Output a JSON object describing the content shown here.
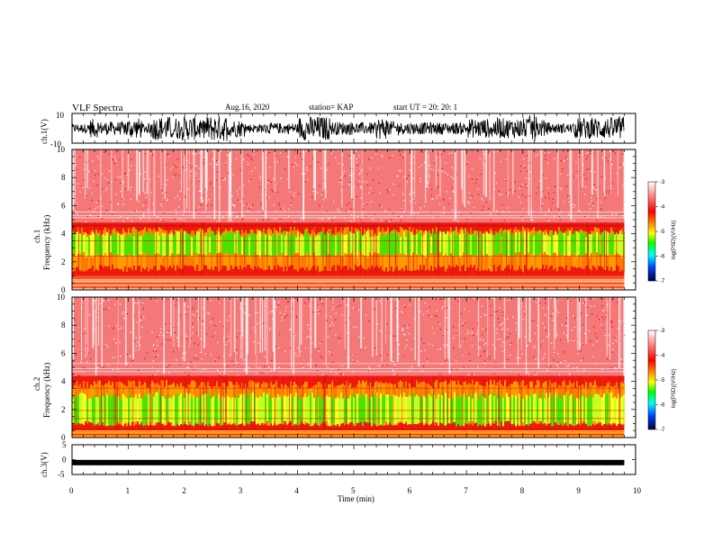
{
  "header": {
    "title": "VLF Spectra",
    "date": "Aug.16, 2020",
    "station": "station= KAP",
    "start": "start  UT =   20: 20: 1"
  },
  "chart_data": [
    {
      "type": "line",
      "title": "",
      "ylabel": "ch.1(V)",
      "ylim": [
        -10,
        10
      ],
      "yticks": [
        "10",
        "-10"
      ],
      "xlim": [
        0,
        10
      ],
      "description_values": {
        "x_end": 9.8,
        "typical_range": [
          -8,
          8
        ]
      }
    },
    {
      "type": "heatmap",
      "ylabel": "ch.1\nFrequency (kHz)",
      "ylabel_line1": "ch.1",
      "ylabel_line2": "Frequency (kHz)",
      "ylim": [
        0,
        10
      ],
      "yticks": [
        "0",
        "2",
        "4",
        "6",
        "8",
        "10"
      ],
      "xlim": [
        0,
        10
      ],
      "x_end": 9.8,
      "band_low_edge": 1.0,
      "band_high_edge": 4.8,
      "green_band": [
        2.5,
        4.0
      ],
      "colorbar": {
        "label": "log(PSD)(V²/Hz)",
        "range": [
          -7,
          -3
        ],
        "ticks": [
          "-3",
          "-4",
          "-5",
          "-6",
          "-7"
        ]
      }
    },
    {
      "type": "heatmap",
      "ylabel_line1": "ch.2",
      "ylabel_line2": "Frequency (kHz)",
      "ylim": [
        0,
        10
      ],
      "yticks": [
        "0",
        "2",
        "4",
        "6",
        "8",
        "10"
      ],
      "xlim": [
        0,
        10
      ],
      "x_end": 9.8,
      "band_low_edge": 0.5,
      "band_high_edge": 4.4,
      "green_band": [
        1.0,
        3.0
      ],
      "colorbar": {
        "label": "log(PSD)(V²/Hz)",
        "range": [
          -7,
          -3
        ],
        "ticks": [
          "-3",
          "-4",
          "-5",
          "-6",
          "-7"
        ]
      }
    },
    {
      "type": "line",
      "ylabel": "ch.3(V)",
      "ylim": [
        -5,
        5
      ],
      "yticks": [
        "5",
        "0",
        "-5"
      ],
      "xlim": [
        0,
        10
      ],
      "level": -1,
      "x_end": 9.8
    }
  ],
  "xaxis": {
    "label": "Time (min)",
    "ticks": [
      "0",
      "1",
      "2",
      "3",
      "4",
      "5",
      "6",
      "7",
      "8",
      "9",
      "10"
    ]
  },
  "colors": {
    "background": "#ffffff",
    "noise_red": "#f03a3a",
    "band_red": "#e81010",
    "band_orange": "#ff7a00",
    "band_yellow": "#ffff20",
    "band_green": "#40e000"
  }
}
